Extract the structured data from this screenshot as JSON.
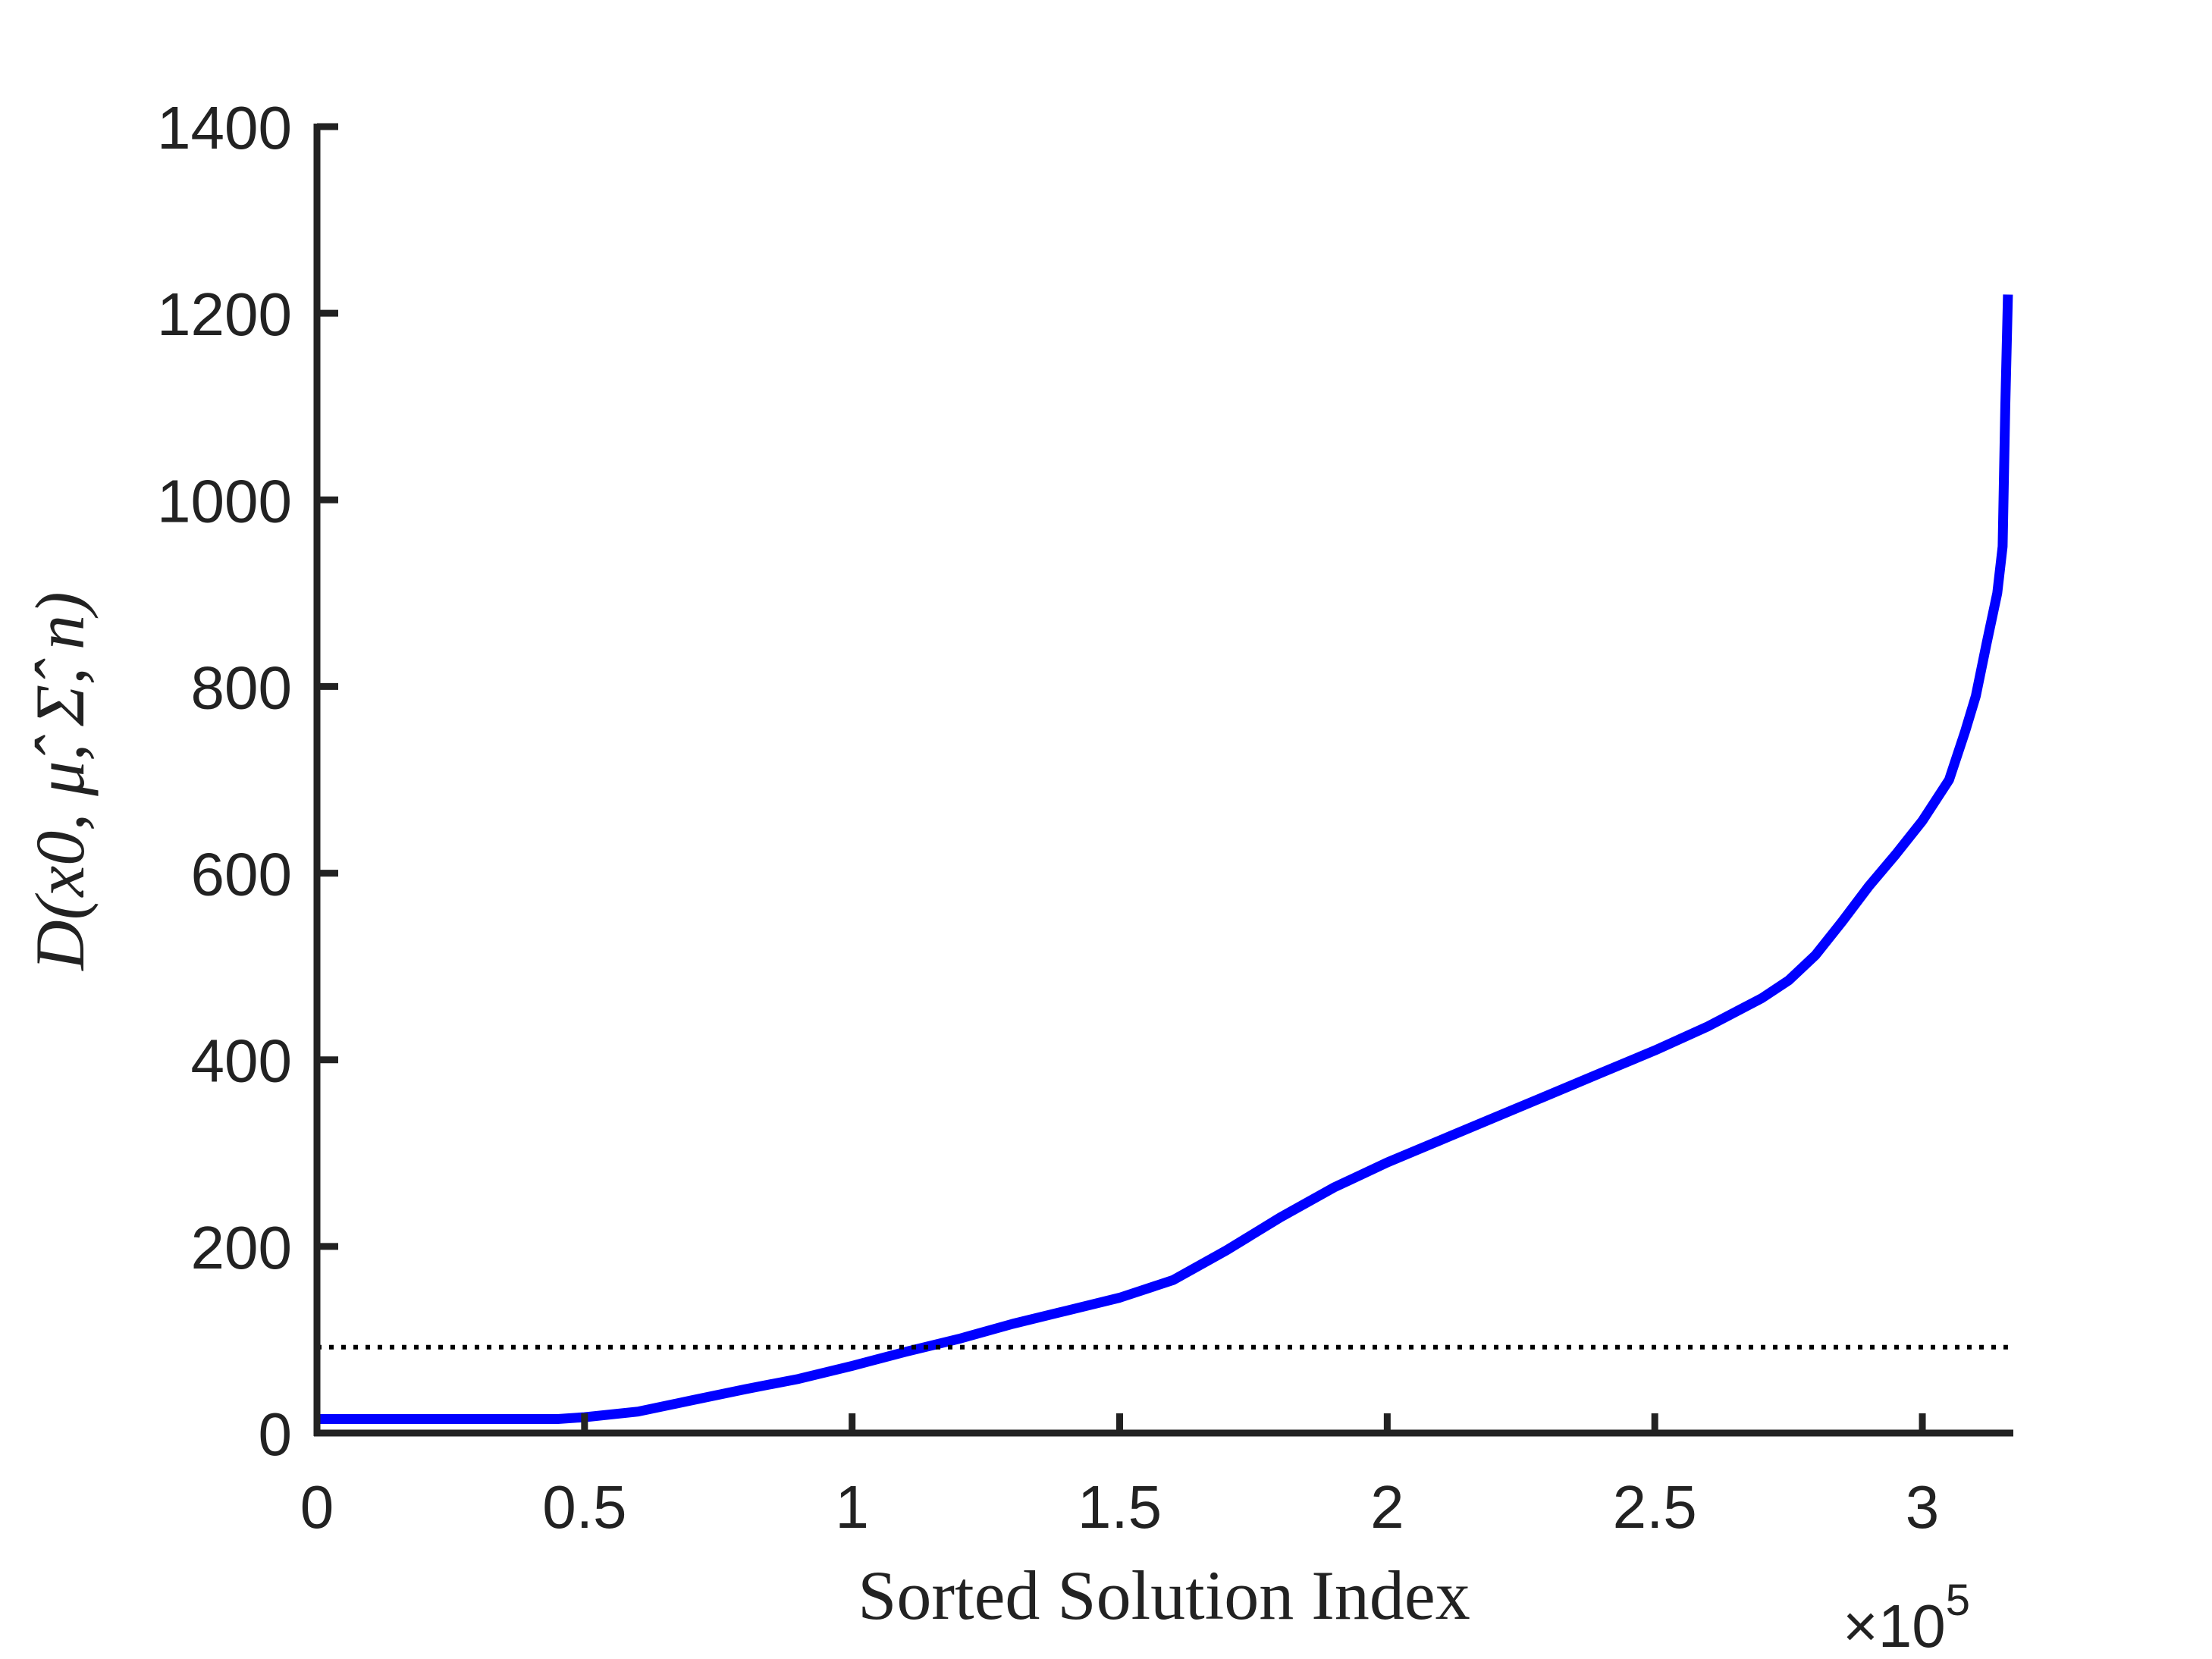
{
  "chart_data": {
    "type": "line",
    "title": "",
    "xlabel": "Sorted Solution Index",
    "ylabel": "D(x0, μ̂, Σ̂, n)",
    "x_exponent_label": "×10",
    "x_exponent_power": "5",
    "xlim": [
      0,
      3.17
    ],
    "ylim": [
      0,
      1400
    ],
    "x_ticks": [
      0,
      0.5,
      1,
      1.5,
      2,
      2.5,
      3
    ],
    "x_tick_labels": [
      "0",
      "0.5",
      "1",
      "1.5",
      "2",
      "2.5",
      "3"
    ],
    "y_ticks": [
      0,
      200,
      400,
      600,
      800,
      1000,
      1200,
      1400
    ],
    "y_tick_labels": [
      "0",
      "200",
      "400",
      "600",
      "800",
      "1000",
      "1200",
      "1400"
    ],
    "grid": false,
    "series": [
      {
        "color": "#0000ff",
        "style": "solid",
        "x": [
          0,
          0.2,
          0.45,
          0.5,
          0.6,
          0.7,
          0.8,
          0.9,
          1.0,
          1.1,
          1.2,
          1.3,
          1.4,
          1.5,
          1.6,
          1.7,
          1.8,
          1.9,
          2.0,
          2.1,
          2.2,
          2.3,
          2.4,
          2.5,
          2.6,
          2.7,
          2.75,
          2.8,
          2.85,
          2.9,
          2.95,
          3.0,
          3.05,
          3.08,
          3.1,
          3.12,
          3.14,
          3.15,
          3.155,
          3.16
        ],
        "y": [
          15,
          15,
          15,
          17,
          23,
          35,
          47,
          58,
          72,
          87,
          101,
          117,
          131,
          145,
          164,
          196,
          231,
          263,
          290,
          314,
          338,
          362,
          386,
          410,
          436,
          466,
          485,
          512,
          548,
          586,
          620,
          656,
          700,
          752,
          790,
          846,
          900,
          950,
          1100,
          1220
        ]
      },
      {
        "color": "#000000",
        "style": "dotted",
        "x": [
          0,
          3.16
        ],
        "y": [
          92,
          92
        ]
      }
    ]
  }
}
